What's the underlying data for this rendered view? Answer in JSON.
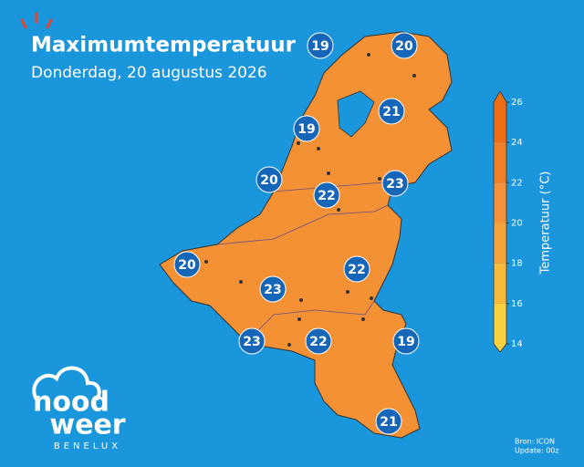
{
  "header": {
    "title": "Maximumtemperatuur",
    "subtitle": "Donderdag, 20 augustus 2026"
  },
  "markers": [
    19,
    20,
    21,
    19,
    20,
    22,
    23,
    20,
    22,
    23,
    23,
    22,
    19,
    21
  ],
  "colorbar": {
    "label": "Temperatuur (°C)",
    "range": [
      14,
      26
    ],
    "ticks": [
      14,
      16,
      18,
      20,
      22,
      24,
      26
    ],
    "colors": [
      "#fbd03f",
      "#f8ba3a",
      "#f5a43a",
      "#f3923a",
      "#f08027",
      "#ee6d15"
    ]
  },
  "logo": {
    "line1": "nood",
    "line2": "weer",
    "line3": "BENELUX"
  },
  "footer": {
    "source": "Bron: ICON",
    "update": "Update: 00z"
  }
}
